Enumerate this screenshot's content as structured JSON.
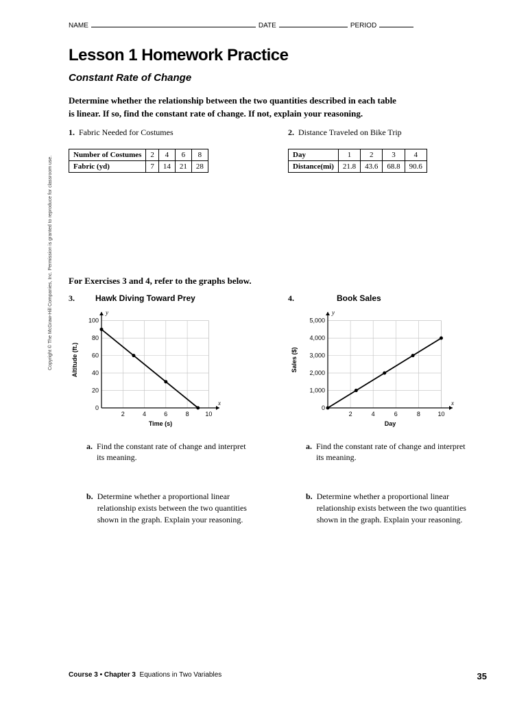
{
  "header": {
    "name": "NAME",
    "date": "DATE",
    "period": "PERIOD"
  },
  "title": "Lesson 1 Homework Practice",
  "subtitle": "Constant Rate of Change",
  "instructions": "Determine whether the relationship between the two quantities described in each table is linear. If so, find the constant rate of change. If not, explain your reasoning.",
  "prob1": {
    "num": "1.",
    "title": "Fabric Needed for Costumes",
    "row1_label": "Number of Costumes",
    "row1": [
      "2",
      "4",
      "6",
      "8"
    ],
    "row2_label": "Fabric (yd)",
    "row2": [
      "7",
      "14",
      "21",
      "28"
    ]
  },
  "prob2": {
    "num": "2.",
    "title": "Distance Traveled on Bike Trip",
    "row1_label": "Day",
    "row1": [
      "1",
      "2",
      "3",
      "4"
    ],
    "row2_label": "Distance(mi)",
    "row2": [
      "21.8",
      "43.6",
      "68.8",
      "90.6"
    ]
  },
  "section2_head": "For Exercises 3 and 4, refer to the graphs below.",
  "graph3": {
    "num": "3.",
    "title": "Hawk Diving Toward Prey",
    "xlabel": "Time (s)",
    "ylabel": "Altitude (ft.)",
    "xticks": [
      "2",
      "4",
      "6",
      "8",
      "10"
    ],
    "yticks": [
      "0",
      "20",
      "40",
      "60",
      "80",
      "100"
    ],
    "xlim": [
      0,
      11
    ],
    "ylim": [
      0,
      110
    ],
    "line_pts": [
      [
        0,
        90
      ],
      [
        9,
        0
      ]
    ],
    "marker_pts": [
      [
        0,
        90
      ],
      [
        3,
        60
      ],
      [
        6,
        30
      ],
      [
        9,
        0
      ]
    ],
    "sub_a": "Find the constant rate of change and interpret its meaning.",
    "sub_b": "Determine whether a proportional linear relationship exists between the two quantities shown in the graph. Explain your reasoning."
  },
  "graph4": {
    "num": "4.",
    "title": "Book Sales",
    "xlabel": "Day",
    "ylabel": "Sales ($)",
    "xticks": [
      "2",
      "4",
      "6",
      "8",
      "10"
    ],
    "yticks": [
      "0",
      "1,000",
      "2,000",
      "3,000",
      "4,000",
      "5,000"
    ],
    "xlim": [
      0,
      11
    ],
    "ylim": [
      0,
      5500
    ],
    "line_pts": [
      [
        0,
        0
      ],
      [
        10,
        4000
      ]
    ],
    "marker_pts": [
      [
        0,
        0
      ],
      [
        2.5,
        1000
      ],
      [
        5,
        2000
      ],
      [
        7.5,
        3000
      ],
      [
        10,
        4000
      ]
    ],
    "sub_a": "Find the constant rate of change and interpret its meaning.",
    "sub_b": "Determine whether a proportional linear relationship exists between the two quantities shown in the graph. Explain your reasoning."
  },
  "footer_left_bold": "Course 3 • Chapter 3",
  "footer_left_rest": "Equations in Two Variables",
  "footer_page": "35",
  "copyright": "Copyright © The McGraw-Hill Companies, Inc. Permission is granted to reproduce for classroom use.",
  "style": {
    "grid_color": "#bfbfbf",
    "axis_color": "#000000",
    "line_color": "#000000",
    "marker_fill": "#000000",
    "bg": "#ffffff"
  }
}
